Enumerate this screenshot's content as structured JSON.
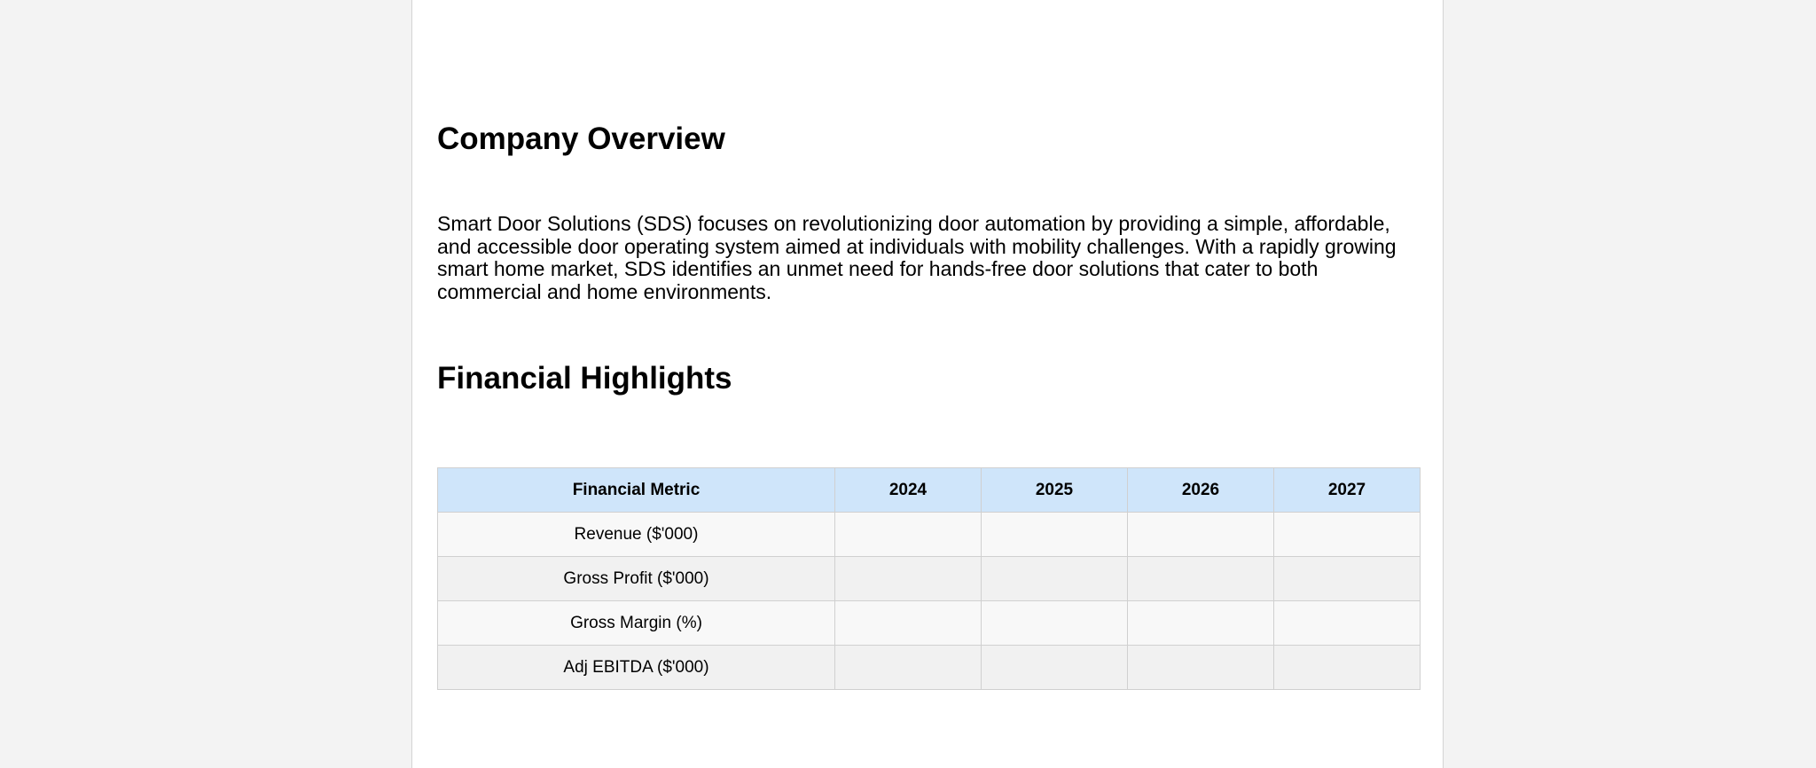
{
  "sections": {
    "overview": {
      "title": "Company Overview",
      "body": "Smart Door Solutions (SDS) focuses on revolutionizing door automation by providing a simple, affordable, and accessible door operating system aimed at individuals with mobility challenges. With a rapidly growing smart home market, SDS identifies an unmet need for hands-free door solutions that cater to both commercial and home environments."
    },
    "financial": {
      "title": "Financial Highlights"
    }
  },
  "table": {
    "headers": [
      "Financial Metric",
      "2024",
      "2025",
      "2026",
      "2027"
    ],
    "rows": [
      [
        "Revenue ($'000)",
        "",
        "",
        "",
        ""
      ],
      [
        "Gross Profit ($'000)",
        "",
        "",
        "",
        ""
      ],
      [
        "Gross Margin (%)",
        "",
        "",
        "",
        ""
      ],
      [
        "Adj EBITDA ($'000)",
        "",
        "",
        "",
        ""
      ]
    ]
  },
  "colors": {
    "header_bg": "#cfe5fa",
    "row_odd": "#f8f8f8",
    "row_even": "#f1f1f1",
    "canvas": "#f3f3f3"
  }
}
